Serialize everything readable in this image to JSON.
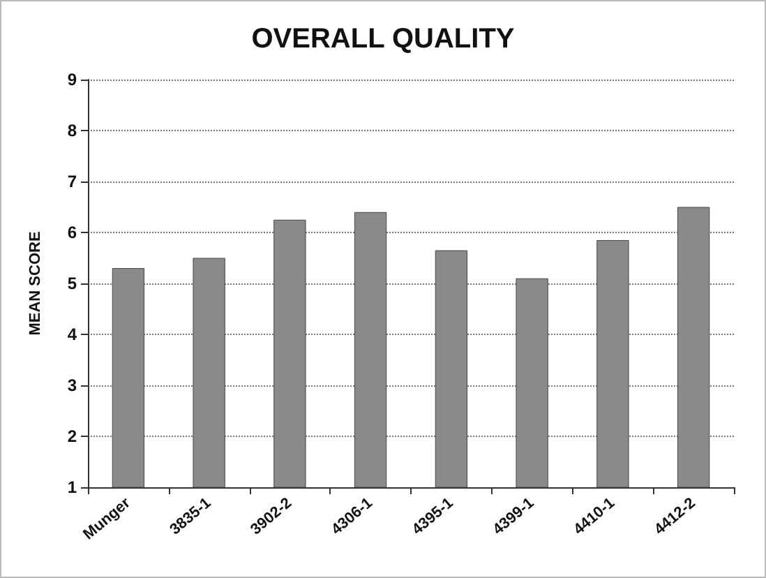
{
  "chart_data": {
    "type": "bar",
    "title": "OVERALL QUALITY",
    "ylabel": "MEAN SCORE",
    "categories": [
      "Munger",
      "3835-1",
      "3902-2",
      "4306-1",
      "4395-1",
      "4399-1",
      "4410-1",
      "4412-2"
    ],
    "values": [
      5.3,
      5.5,
      6.25,
      6.4,
      5.65,
      5.1,
      5.85,
      6.5
    ],
    "color": "#8a8a8a",
    "ylim": [
      1,
      9
    ],
    "yticks": [
      1,
      2,
      3,
      4,
      5,
      6,
      7,
      8,
      9
    ],
    "grid": "y"
  }
}
